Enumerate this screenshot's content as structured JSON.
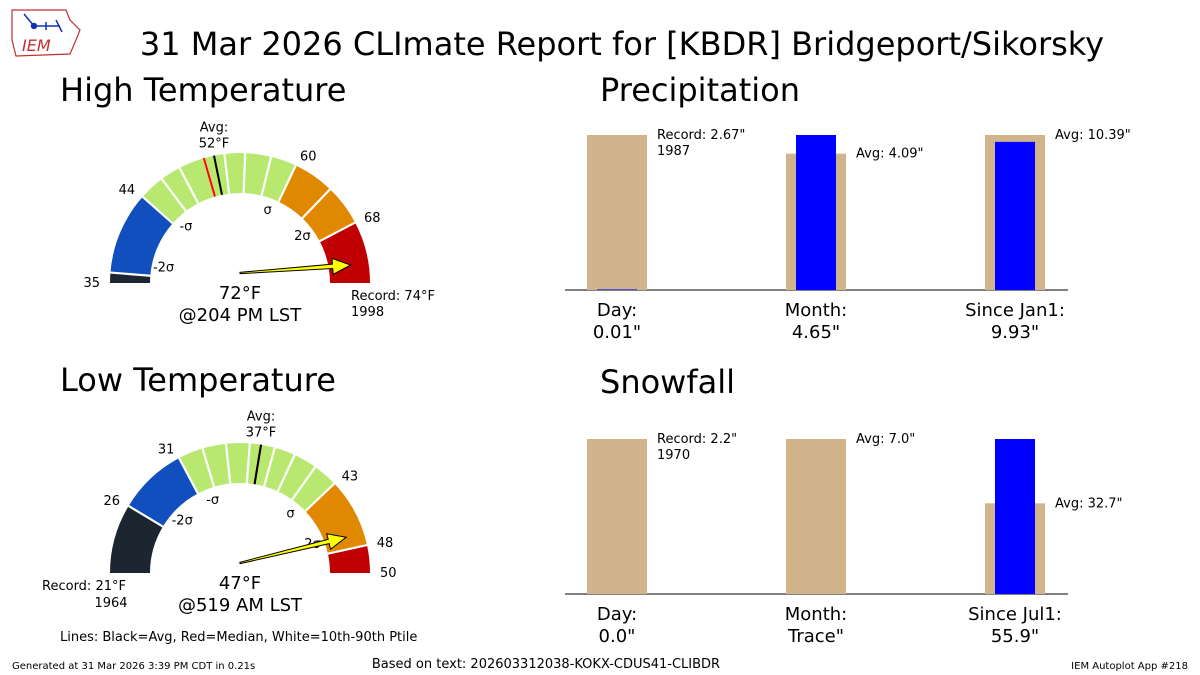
{
  "title": "31 Mar 2026 CLImate Report for [KBDR] Bridgeport/Sikorsky",
  "logo_text": "IEM",
  "footer": {
    "generated": "Generated at 31 Mar 2026 3:39 PM CDT in 0.21s",
    "based_on": "Based on text: 202603312038-KOKX-CDUS41-CLIBDR",
    "app": "IEM Autoplot App #218",
    "lines_legend": "Lines: Black=Avg, Red=Median, White=10th-90th Ptile"
  },
  "colors": {
    "green": "#b8e870",
    "blue": "#104fbd",
    "orange": "#e08800",
    "red": "#c00000",
    "dark": "#1c2630",
    "tan": "#d2b48c",
    "obs": "#0000ff",
    "arrow": "#ffff00",
    "median": "#ff0000",
    "avg": "#000000"
  },
  "chart_data": [
    {
      "type": "gauge",
      "title": "High Temperature",
      "range": [
        35,
        74
      ],
      "ticks": [
        35,
        44,
        60,
        68
      ],
      "bands": [
        {
          "from": 35,
          "to": 36,
          "color": "dark"
        },
        {
          "from": 36,
          "to": 44,
          "color": "blue"
        },
        {
          "from": 44,
          "to": 60,
          "color": "green"
        },
        {
          "from": 60,
          "to": 64,
          "color": "orange"
        },
        {
          "from": 64,
          "to": 68,
          "color": "orange"
        },
        {
          "from": 68,
          "to": 74,
          "color": "red"
        }
      ],
      "sigma_labels": [
        {
          "value": 37.5,
          "text": "-2σ"
        },
        {
          "value": 45.0,
          "text": "-σ"
        },
        {
          "value": 59.0,
          "text": "σ"
        },
        {
          "value": 66.0,
          "text": "2σ"
        }
      ],
      "percentile_lines": [
        44,
        46.5,
        48.5,
        51,
        53,
        55,
        57.5,
        60
      ],
      "median": 51,
      "avg": 52,
      "avg_label": "Avg:",
      "avg_value": "52°F",
      "observed": 72,
      "observed_label": "72°F",
      "observed_time": "@204 PM LST",
      "record_label": "Record: 74°F",
      "record_year": "1998"
    },
    {
      "type": "gauge",
      "title": "Low Temperature",
      "range": [
        21,
        50
      ],
      "ticks": [
        26,
        31,
        43,
        48,
        50
      ],
      "bands": [
        {
          "from": 21,
          "to": 26,
          "color": "dark"
        },
        {
          "from": 26,
          "to": 31,
          "color": "blue"
        },
        {
          "from": 31,
          "to": 43,
          "color": "green"
        },
        {
          "from": 43,
          "to": 48,
          "color": "orange"
        },
        {
          "from": 48,
          "to": 50,
          "color": "red"
        }
      ],
      "sigma_labels": [
        {
          "value": 27.8,
          "text": "-2σ"
        },
        {
          "value": 32.2,
          "text": "-σ"
        },
        {
          "value": 42.0,
          "text": "σ"
        },
        {
          "value": 46.5,
          "text": "2σ"
        }
      ],
      "percentile_lines": [
        31,
        32.8,
        34.5,
        36.2,
        38,
        39.5,
        41.2,
        43
      ],
      "median": 37,
      "avg": 37,
      "avg_label": "Avg:",
      "avg_value": "37°F",
      "observed": 47,
      "observed_label": "47°F",
      "observed_time": "@519 AM LST",
      "record_label": "Record: 21°F",
      "record_year": "1964"
    },
    {
      "type": "bar",
      "title": "Precipitation",
      "categories": [
        {
          "label": "Day:",
          "value_label": "0.01\"",
          "scale_max": 2.67,
          "background": 2.67,
          "observed": 0.01,
          "annotation": "Record: 2.67\"",
          "annotation2": "1987",
          "annot_at": 2.67
        },
        {
          "label": "Month:",
          "value_label": "4.65\"",
          "scale_max": 4.65,
          "background": 4.09,
          "observed": 4.65,
          "annotation": "Avg: 4.09\"",
          "annotation2": "",
          "annot_at": 4.09
        },
        {
          "label": "Since Jan1:",
          "value_label": "9.93\"",
          "scale_max": 10.39,
          "background": 10.39,
          "observed": 9.93,
          "annotation": "Avg: 10.39\"",
          "annotation2": "",
          "annot_at": 10.39
        }
      ]
    },
    {
      "type": "bar",
      "title": "Snowfall",
      "categories": [
        {
          "label": "Day:",
          "value_label": "0.0\"",
          "scale_max": 2.2,
          "background": 2.2,
          "observed": 0.0,
          "annotation": "Record: 2.2\"",
          "annotation2": "1970",
          "annot_at": 2.2
        },
        {
          "label": "Month:",
          "value_label": "Trace\"",
          "scale_max": 7.0,
          "background": 7.0,
          "observed": 0.0,
          "annotation": "Avg: 7.0\"",
          "annotation2": "",
          "annot_at": 7.0
        },
        {
          "label": "Since Jul1:",
          "value_label": "55.9\"",
          "scale_max": 55.9,
          "background": 32.7,
          "observed": 55.9,
          "annotation": "Avg: 32.7\"",
          "annotation2": "",
          "annot_at": 32.7
        }
      ]
    }
  ]
}
